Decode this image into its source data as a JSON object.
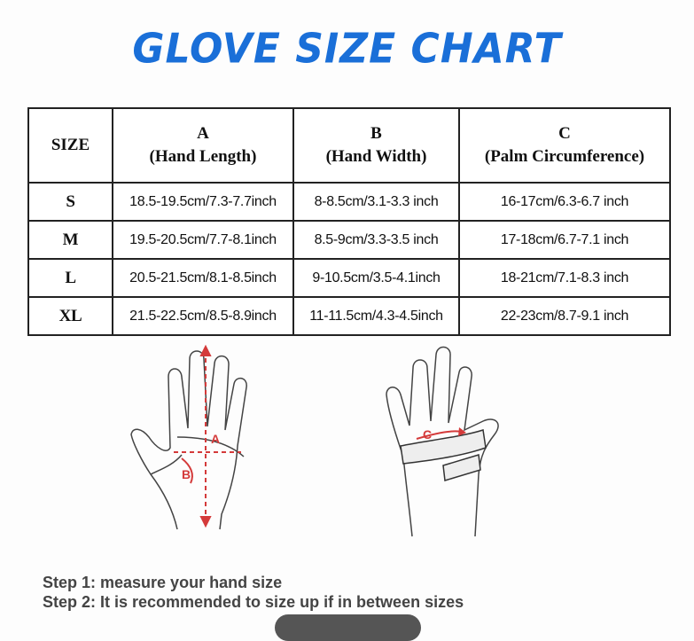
{
  "title": "GLOVE SIZE CHART",
  "colors": {
    "title": "#1a6fd8",
    "measure_marks": "#d43a3a"
  },
  "table": {
    "headers": [
      {
        "letter": "",
        "label": "SIZE"
      },
      {
        "letter": "A",
        "label": "(Hand Length)"
      },
      {
        "letter": "B",
        "label": "(Hand Width)"
      },
      {
        "letter": "C",
        "label": "(Palm Circumference)"
      }
    ],
    "rows": [
      {
        "size": "S",
        "a": "18.5-19.5cm/7.3-7.7inch",
        "b": "8-8.5cm/3.1-3.3 inch",
        "c": "16-17cm/6.3-6.7 inch"
      },
      {
        "size": "M",
        "a": "19.5-20.5cm/7.7-8.1inch",
        "b": "8.5-9cm/3.3-3.5 inch",
        "c": "17-18cm/6.7-7.1 inch"
      },
      {
        "size": "L",
        "a": "20.5-21.5cm/8.1-8.5inch",
        "b": "9-10.5cm/3.5-4.1inch",
        "c": "18-21cm/7.1-8.3 inch"
      },
      {
        "size": "XL",
        "a": "21.5-22.5cm/8.5-8.9inch",
        "b": "11-11.5cm/4.3-4.5inch",
        "c": "22-23cm/8.7-9.1 inch"
      }
    ]
  },
  "diagram": {
    "label_a": "A",
    "label_b": "B",
    "label_c": "C"
  },
  "steps": [
    "Step 1: measure your hand size",
    "Step 2: It is recommended to size up if in between sizes"
  ]
}
